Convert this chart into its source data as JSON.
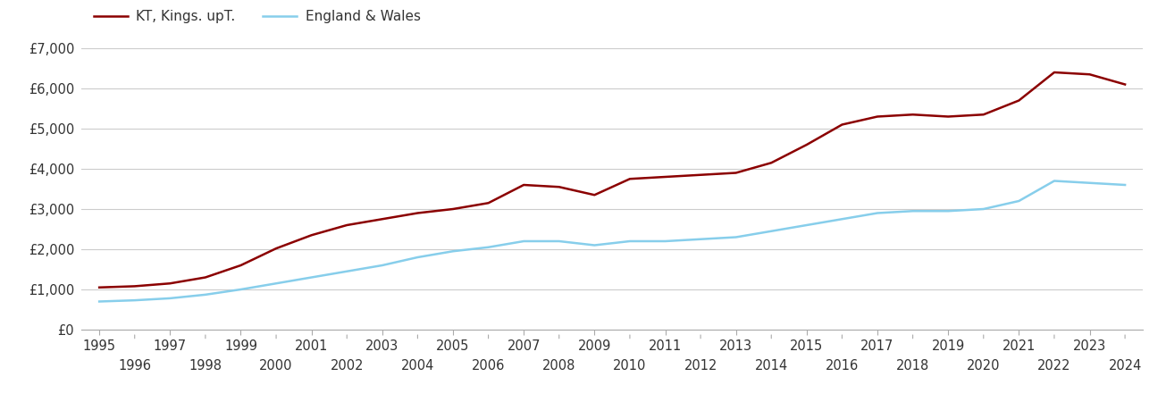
{
  "kt_years": [
    1995,
    1996,
    1997,
    1998,
    1999,
    2000,
    2001,
    2002,
    2003,
    2004,
    2005,
    2006,
    2007,
    2008,
    2009,
    2010,
    2011,
    2012,
    2013,
    2014,
    2015,
    2016,
    2017,
    2018,
    2019,
    2020,
    2021,
    2022,
    2023,
    2024
  ],
  "kt_values": [
    1050,
    1080,
    1150,
    1300,
    1600,
    2020,
    2350,
    2600,
    2750,
    2900,
    3000,
    3150,
    3600,
    3550,
    3350,
    3750,
    3800,
    3850,
    3900,
    4150,
    4600,
    5100,
    5300,
    5350,
    5300,
    5350,
    5700,
    6400,
    6350,
    6100
  ],
  "ew_years": [
    1995,
    1996,
    1997,
    1998,
    1999,
    2000,
    2001,
    2002,
    2003,
    2004,
    2005,
    2006,
    2007,
    2008,
    2009,
    2010,
    2011,
    2012,
    2013,
    2014,
    2015,
    2016,
    2017,
    2018,
    2019,
    2020,
    2021,
    2022,
    2023,
    2024
  ],
  "ew_values": [
    700,
    730,
    780,
    870,
    1000,
    1150,
    1300,
    1450,
    1600,
    1800,
    1950,
    2050,
    2200,
    2200,
    2100,
    2200,
    2200,
    2250,
    2300,
    2450,
    2600,
    2750,
    2900,
    2950,
    2950,
    3000,
    3200,
    3700,
    3650,
    3600
  ],
  "kt_color": "#8B0000",
  "ew_color": "#87CEEB",
  "kt_label": "KT, Kings. upT.",
  "ew_label": "England & Wales",
  "ylim": [
    0,
    7000
  ],
  "yticks": [
    0,
    1000,
    2000,
    3000,
    4000,
    5000,
    6000,
    7000
  ],
  "ytick_labels": [
    "£0",
    "£1,000",
    "£2,000",
    "£3,000",
    "£4,000",
    "£5,000",
    "£6,000",
    "£7,000"
  ],
  "xlim_left": 1994.5,
  "xlim_right": 2024.5,
  "xticks_odd": [
    1995,
    1997,
    1999,
    2001,
    2003,
    2005,
    2007,
    2009,
    2011,
    2013,
    2015,
    2017,
    2019,
    2021,
    2023
  ],
  "xticks_even": [
    1996,
    1998,
    2000,
    2002,
    2004,
    2006,
    2008,
    2010,
    2012,
    2014,
    2016,
    2018,
    2020,
    2022,
    2024
  ],
  "background_color": "#ffffff",
  "grid_color": "#cccccc",
  "line_width": 1.8,
  "legend_fontsize": 11,
  "tick_fontsize": 10.5
}
